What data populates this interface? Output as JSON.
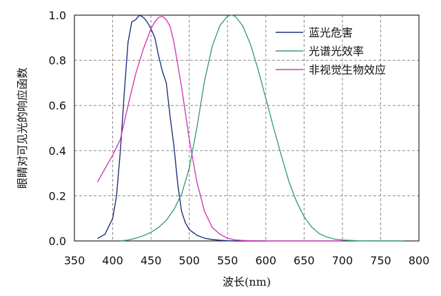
{
  "chart_data": {
    "type": "line",
    "xlabel": "波长(nm)",
    "ylabel": "眼睛对可见光的响应函数",
    "xlim": [
      350,
      800
    ],
    "ylim": [
      0.0,
      1.0
    ],
    "xticks": [
      "350",
      "400",
      "450",
      "500",
      "550",
      "600",
      "650",
      "700",
      "750",
      "800"
    ],
    "yticks": [
      "0.0",
      "0.2",
      "0.4",
      "0.6",
      "0.8",
      "1.0"
    ],
    "grid": true,
    "legend_position": "top-right",
    "series": [
      {
        "name": "蓝光危害",
        "color": "#1f2f7a",
        "x": [
          380,
          390,
          400,
          405,
          410,
          415,
          420,
          425,
          430,
          435,
          440,
          445,
          450,
          455,
          460,
          465,
          470,
          475,
          480,
          485,
          490,
          495,
          500,
          510,
          520,
          530,
          540,
          550,
          560,
          600
        ],
        "y": [
          0.01,
          0.03,
          0.1,
          0.2,
          0.4,
          0.65,
          0.88,
          0.97,
          0.98,
          1.0,
          0.99,
          0.97,
          0.94,
          0.9,
          0.82,
          0.75,
          0.7,
          0.55,
          0.42,
          0.25,
          0.13,
          0.08,
          0.05,
          0.025,
          0.012,
          0.006,
          0.003,
          0.001,
          0.0,
          0.0
        ]
      },
      {
        "name": "光谱光效率",
        "color": "#3f9a7a",
        "x": [
          410,
          420,
          430,
          440,
          450,
          460,
          470,
          480,
          490,
          500,
          510,
          520,
          530,
          540,
          550,
          555,
          560,
          570,
          580,
          590,
          600,
          610,
          620,
          630,
          640,
          650,
          660,
          670,
          680,
          690,
          700,
          720,
          750,
          780
        ],
        "y": [
          0.0,
          0.004,
          0.012,
          0.023,
          0.038,
          0.06,
          0.091,
          0.139,
          0.208,
          0.323,
          0.503,
          0.71,
          0.862,
          0.954,
          0.995,
          1.0,
          0.995,
          0.952,
          0.87,
          0.757,
          0.631,
          0.503,
          0.381,
          0.265,
          0.175,
          0.107,
          0.061,
          0.032,
          0.017,
          0.008,
          0.004,
          0.001,
          0.0,
          0.0
        ]
      },
      {
        "name": "非视觉生物效应",
        "color": "#d23ab4",
        "x": [
          380,
          390,
          400,
          410,
          420,
          430,
          440,
          450,
          455,
          460,
          465,
          470,
          475,
          480,
          490,
          500,
          510,
          520,
          530,
          540,
          550,
          560,
          570,
          580,
          600,
          650,
          700
        ],
        "y": [
          0.26,
          0.32,
          0.38,
          0.45,
          0.6,
          0.74,
          0.85,
          0.94,
          0.97,
          0.99,
          0.995,
          0.98,
          0.95,
          0.88,
          0.68,
          0.45,
          0.26,
          0.13,
          0.06,
          0.03,
          0.012,
          0.005,
          0.002,
          0.001,
          0.0,
          0.0,
          0.0
        ]
      }
    ]
  }
}
